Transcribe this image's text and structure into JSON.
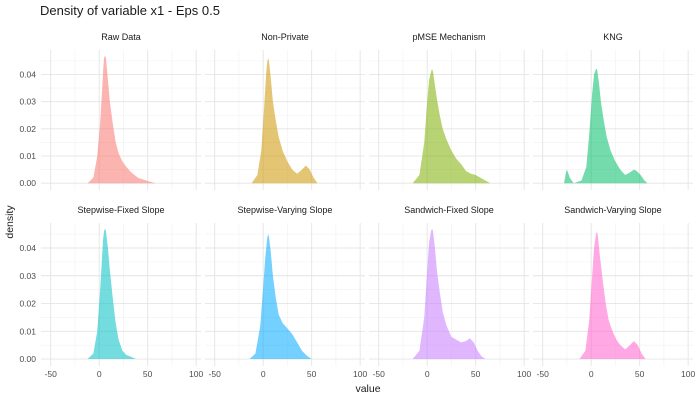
{
  "chart_data": {
    "type": "area",
    "title": "Density of variable x1 - Eps 0.5",
    "xlabel": "value",
    "ylabel": "density",
    "xlim": [
      -60,
      105
    ],
    "ylim": [
      -0.0025,
      0.049
    ],
    "x_ticks": [
      -50,
      0,
      50,
      100
    ],
    "y_ticks": [
      0.0,
      0.01,
      0.02,
      0.03,
      0.04
    ],
    "y_tick_labels": [
      "0.00",
      "0.01",
      "0.02",
      "0.03",
      "0.04"
    ],
    "grid": true,
    "layout": "facets 2 rows x 4 cols",
    "panels": [
      {
        "label": "Raw Data",
        "color": "#F8766D",
        "points": [
          [
            -12,
            0
          ],
          [
            -6,
            0.002
          ],
          [
            -2,
            0.01
          ],
          [
            1,
            0.022
          ],
          [
            3,
            0.034
          ],
          [
            4,
            0.041
          ],
          [
            5,
            0.046
          ],
          [
            6,
            0.047
          ],
          [
            7,
            0.046
          ],
          [
            9,
            0.038
          ],
          [
            11,
            0.03
          ],
          [
            14,
            0.022
          ],
          [
            17,
            0.015
          ],
          [
            20,
            0.011
          ],
          [
            24,
            0.008
          ],
          [
            28,
            0.006
          ],
          [
            33,
            0.004
          ],
          [
            40,
            0.002
          ],
          [
            50,
            0.0008
          ],
          [
            58,
            0
          ]
        ]
      },
      {
        "label": "Non-Private",
        "color": "#CD9600",
        "points": [
          [
            -12,
            0
          ],
          [
            -6,
            0.003
          ],
          [
            -2,
            0.012
          ],
          [
            1,
            0.028
          ],
          [
            3,
            0.04
          ],
          [
            4,
            0.044
          ],
          [
            5,
            0.046
          ],
          [
            6,
            0.045
          ],
          [
            8,
            0.038
          ],
          [
            10,
            0.03
          ],
          [
            13,
            0.023
          ],
          [
            16,
            0.017
          ],
          [
            20,
            0.012
          ],
          [
            25,
            0.008
          ],
          [
            30,
            0.005
          ],
          [
            35,
            0.0035
          ],
          [
            40,
            0.005
          ],
          [
            44,
            0.0065
          ],
          [
            48,
            0.005
          ],
          [
            52,
            0.002
          ],
          [
            56,
            0
          ]
        ]
      },
      {
        "label": "pMSE Mechanism",
        "color": "#7CAE00",
        "points": [
          [
            -15,
            0
          ],
          [
            -8,
            0.003
          ],
          [
            -3,
            0.015
          ],
          [
            0,
            0.03
          ],
          [
            2,
            0.038
          ],
          [
            4,
            0.041
          ],
          [
            5,
            0.042
          ],
          [
            6,
            0.041
          ],
          [
            8,
            0.036
          ],
          [
            10,
            0.031
          ],
          [
            13,
            0.025
          ],
          [
            16,
            0.02
          ],
          [
            20,
            0.016
          ],
          [
            25,
            0.012
          ],
          [
            30,
            0.009
          ],
          [
            35,
            0.007
          ],
          [
            40,
            0.0045
          ],
          [
            45,
            0.0035
          ],
          [
            50,
            0.003
          ],
          [
            55,
            0.002
          ],
          [
            60,
            0.001
          ],
          [
            65,
            0
          ]
        ]
      },
      {
        "label": "KNG",
        "color": "#00BE67",
        "points": [
          [
            -28,
            0
          ],
          [
            -26,
            0.004
          ],
          [
            -25,
            0.005
          ],
          [
            -22,
            0.002
          ],
          [
            -18,
            0
          ],
          [
            -10,
            0.001
          ],
          [
            -5,
            0.006
          ],
          [
            -2,
            0.018
          ],
          [
            1,
            0.033
          ],
          [
            3,
            0.04
          ],
          [
            5,
            0.042
          ],
          [
            6,
            0.042
          ],
          [
            8,
            0.037
          ],
          [
            10,
            0.03
          ],
          [
            13,
            0.023
          ],
          [
            16,
            0.017
          ],
          [
            20,
            0.012
          ],
          [
            25,
            0.008
          ],
          [
            30,
            0.005
          ],
          [
            35,
            0.003
          ],
          [
            40,
            0.004
          ],
          [
            44,
            0.005
          ],
          [
            47,
            0.0045
          ],
          [
            51,
            0.003
          ],
          [
            55,
            0.001
          ],
          [
            58,
            0
          ]
        ]
      },
      {
        "label": "Stepwise-Fixed Slope",
        "color": "#00BFC4",
        "points": [
          [
            -12,
            0
          ],
          [
            -6,
            0.002
          ],
          [
            -2,
            0.01
          ],
          [
            1,
            0.025
          ],
          [
            3,
            0.037
          ],
          [
            4,
            0.043
          ],
          [
            5,
            0.046
          ],
          [
            6,
            0.047
          ],
          [
            7,
            0.046
          ],
          [
            9,
            0.04
          ],
          [
            11,
            0.032
          ],
          [
            14,
            0.022
          ],
          [
            17,
            0.013
          ],
          [
            20,
            0.007
          ],
          [
            24,
            0.003
          ],
          [
            28,
            0.0015
          ],
          [
            33,
            0.0008
          ],
          [
            38,
            0
          ]
        ]
      },
      {
        "label": "Stepwise-Varying Slope",
        "color": "#00A9FF",
        "points": [
          [
            -14,
            0
          ],
          [
            -8,
            0.002
          ],
          [
            -3,
            0.012
          ],
          [
            0,
            0.026
          ],
          [
            2,
            0.036
          ],
          [
            4,
            0.043
          ],
          [
            5,
            0.045
          ],
          [
            6,
            0.044
          ],
          [
            8,
            0.038
          ],
          [
            10,
            0.03
          ],
          [
            13,
            0.022
          ],
          [
            16,
            0.016
          ],
          [
            20,
            0.013
          ],
          [
            25,
            0.011
          ],
          [
            30,
            0.009
          ],
          [
            35,
            0.006
          ],
          [
            40,
            0.003
          ],
          [
            45,
            0.0012
          ],
          [
            50,
            0
          ]
        ]
      },
      {
        "label": "Sandwich-Fixed Slope",
        "color": "#C77CFF",
        "points": [
          [
            -15,
            0
          ],
          [
            -8,
            0.003
          ],
          [
            -3,
            0.015
          ],
          [
            0,
            0.032
          ],
          [
            2,
            0.042
          ],
          [
            4,
            0.046
          ],
          [
            5,
            0.047
          ],
          [
            6,
            0.046
          ],
          [
            8,
            0.04
          ],
          [
            10,
            0.032
          ],
          [
            13,
            0.024
          ],
          [
            16,
            0.017
          ],
          [
            20,
            0.012
          ],
          [
            25,
            0.008
          ],
          [
            30,
            0.007
          ],
          [
            35,
            0.006
          ],
          [
            40,
            0.0065
          ],
          [
            44,
            0.0075
          ],
          [
            48,
            0.006
          ],
          [
            52,
            0.003
          ],
          [
            56,
            0.001
          ],
          [
            60,
            0
          ]
        ]
      },
      {
        "label": "Sandwich-Varying Slope",
        "color": "#FF61CC",
        "points": [
          [
            -12,
            0
          ],
          [
            -6,
            0.003
          ],
          [
            -2,
            0.014
          ],
          [
            1,
            0.03
          ],
          [
            3,
            0.04
          ],
          [
            5,
            0.045
          ],
          [
            6,
            0.046
          ],
          [
            7,
            0.044
          ],
          [
            9,
            0.037
          ],
          [
            12,
            0.028
          ],
          [
            15,
            0.02
          ],
          [
            18,
            0.014
          ],
          [
            22,
            0.01
          ],
          [
            26,
            0.007
          ],
          [
            30,
            0.005
          ],
          [
            35,
            0.0035
          ],
          [
            40,
            0.005
          ],
          [
            44,
            0.0065
          ],
          [
            48,
            0.005
          ],
          [
            52,
            0.002
          ],
          [
            56,
            0
          ]
        ]
      }
    ]
  }
}
